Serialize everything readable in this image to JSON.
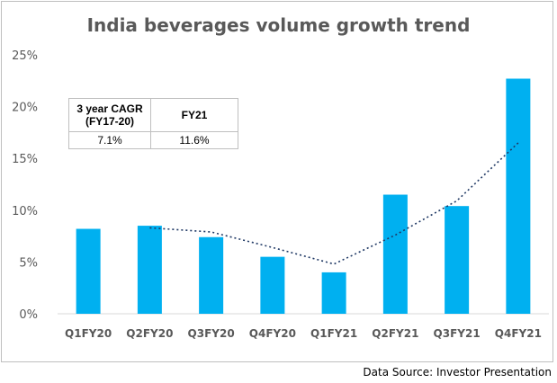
{
  "chart_data": {
    "type": "bar",
    "title": "India beverages volume growth trend",
    "categories": [
      "Q1FY20",
      "Q2FY20",
      "Q3FY20",
      "Q4FY20",
      "Q1FY21",
      "Q2FY21",
      "Q3FY21",
      "Q4FY21"
    ],
    "values": [
      8.2,
      8.5,
      7.4,
      5.5,
      4.0,
      11.5,
      10.4,
      22.7
    ],
    "trendline": {
      "style": "dotted",
      "points": [
        null,
        8.3,
        7.9,
        6.4,
        4.8,
        7.6,
        10.9,
        16.5
      ]
    },
    "ylim": [
      0,
      25
    ],
    "yticks": [
      "0%",
      "5%",
      "10%",
      "15%",
      "20%",
      "25%"
    ],
    "xlabel": "",
    "ylabel": "",
    "grid": false,
    "legend": "none",
    "bar_color": "#00b0f0",
    "trend_color": "#1f3864"
  },
  "table": {
    "headers": [
      "3 year CAGR\n(FY17-20)",
      "FY21"
    ],
    "values": [
      "7.1%",
      "11.6%"
    ]
  },
  "source": "Data Source: Investor Presentation"
}
